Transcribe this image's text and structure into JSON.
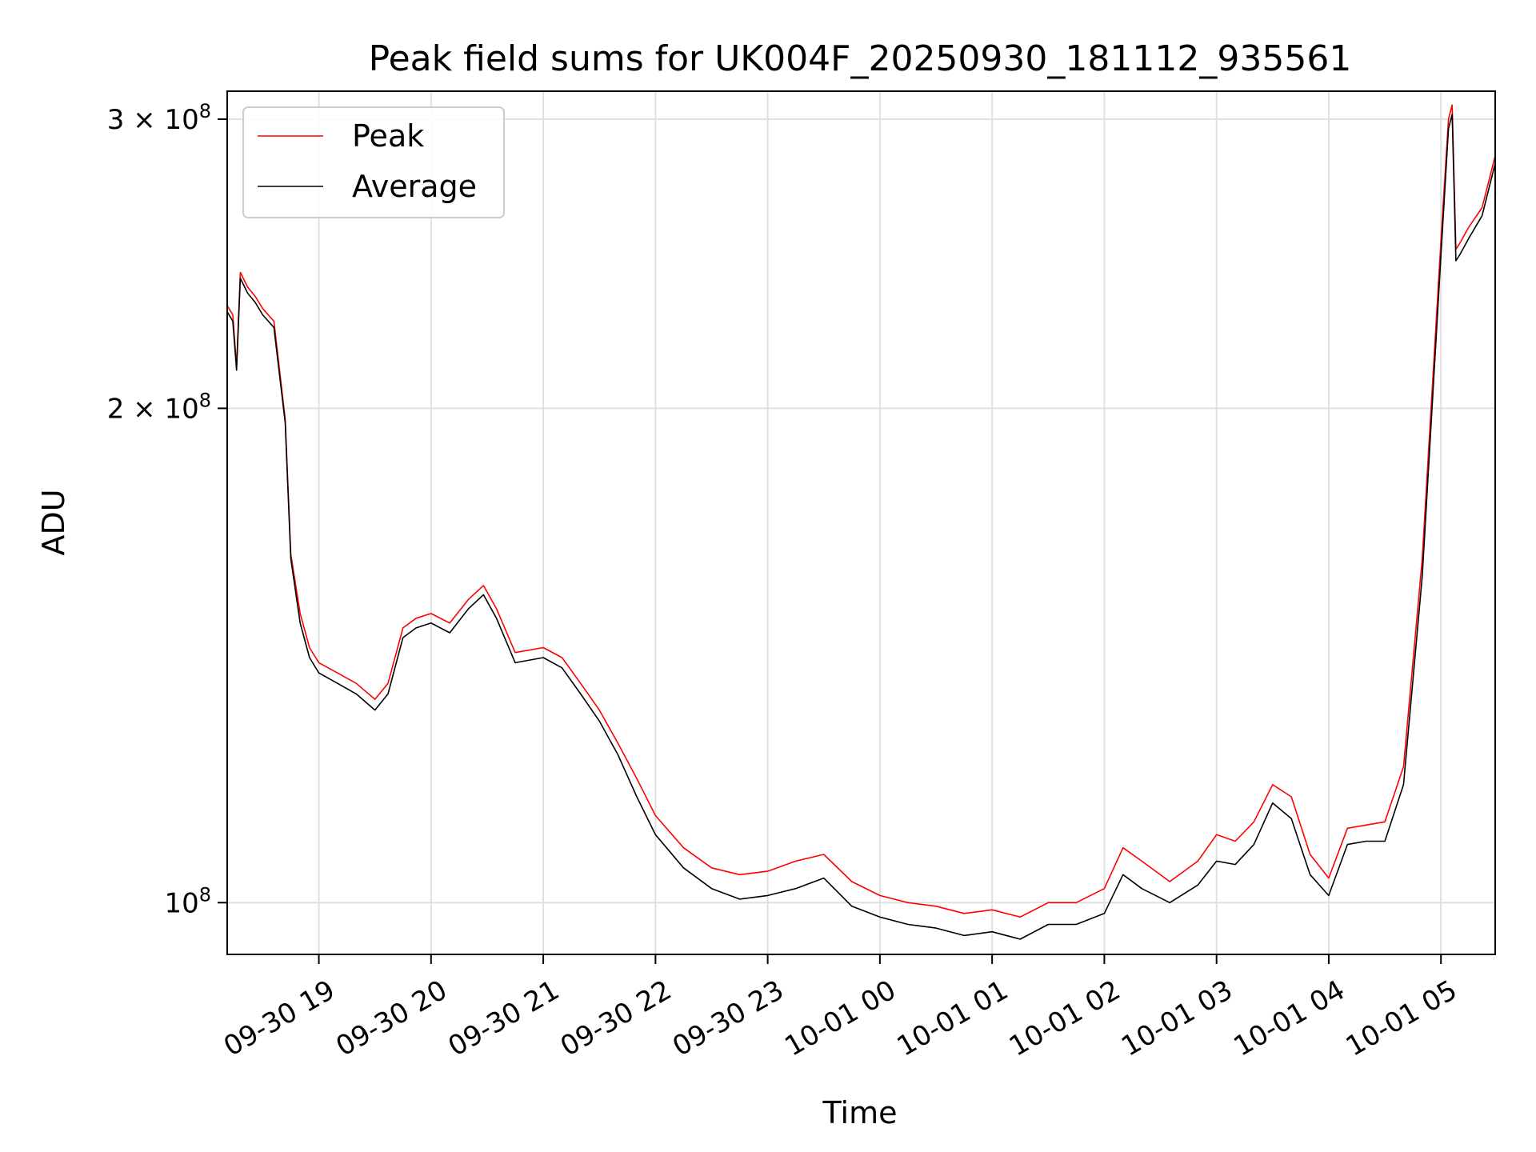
{
  "chart_data": {
    "type": "line",
    "title": "Peak field sums for UK004F_20250930_181112_935561",
    "xlabel": "Time",
    "ylabel": "ADU",
    "yscale": "log",
    "grid": true,
    "legend_position": "top-left",
    "x_range": [
      "2025-09-30 18:11",
      "2025-10-01 05:29"
    ],
    "ylim": [
      93000000,
      312000000
    ],
    "x_ticks": [
      "09-30 19",
      "09-30 20",
      "09-30 21",
      "09-30 22",
      "09-30 23",
      "10-01 00",
      "10-01 01",
      "10-01 02",
      "10-01 03",
      "10-01 04",
      "10-01 05"
    ],
    "y_ticks": [
      {
        "value": 100000000,
        "mantissa": "",
        "exponent": "8",
        "base": "10"
      },
      {
        "value": 200000000,
        "mantissa": "2",
        "exponent": "8",
        "base": "10"
      },
      {
        "value": 300000000,
        "mantissa": "3",
        "exponent": "8",
        "base": "10"
      }
    ],
    "x": [
      "2025-09-30 18:11",
      "2025-09-30 18:14",
      "2025-09-30 18:16",
      "2025-09-30 18:18",
      "2025-09-30 18:22",
      "2025-09-30 18:26",
      "2025-09-30 18:30",
      "2025-09-30 18:36",
      "2025-09-30 18:42",
      "2025-09-30 18:45",
      "2025-09-30 18:50",
      "2025-09-30 18:55",
      "2025-09-30 19:00",
      "2025-09-30 19:10",
      "2025-09-30 19:20",
      "2025-09-30 19:30",
      "2025-09-30 19:37",
      "2025-09-30 19:45",
      "2025-09-30 19:52",
      "2025-09-30 20:00",
      "2025-09-30 20:10",
      "2025-09-30 20:20",
      "2025-09-30 20:28",
      "2025-09-30 20:35",
      "2025-09-30 20:45",
      "2025-09-30 21:00",
      "2025-09-30 21:10",
      "2025-09-30 21:20",
      "2025-09-30 21:30",
      "2025-09-30 21:40",
      "2025-09-30 21:50",
      "2025-09-30 22:00",
      "2025-09-30 22:15",
      "2025-09-30 22:30",
      "2025-09-30 22:45",
      "2025-09-30 23:00",
      "2025-09-30 23:15",
      "2025-09-30 23:30",
      "2025-09-30 23:45",
      "2025-10-01 00:00",
      "2025-10-01 00:15",
      "2025-10-01 00:30",
      "2025-10-01 00:45",
      "2025-10-01 01:00",
      "2025-10-01 01:15",
      "2025-10-01 01:30",
      "2025-10-01 01:45",
      "2025-10-01 02:00",
      "2025-10-01 02:10",
      "2025-10-01 02:20",
      "2025-10-01 02:35",
      "2025-10-01 02:50",
      "2025-10-01 03:00",
      "2025-10-01 03:10",
      "2025-10-01 03:20",
      "2025-10-01 03:30",
      "2025-10-01 03:40",
      "2025-10-01 03:50",
      "2025-10-01 04:00",
      "2025-10-01 04:10",
      "2025-10-01 04:20",
      "2025-10-01 04:30",
      "2025-10-01 04:40",
      "2025-10-01 04:50",
      "2025-10-01 05:00",
      "2025-10-01 05:04",
      "2025-10-01 05:06",
      "2025-10-01 05:08",
      "2025-10-01 05:10",
      "2025-10-01 05:15",
      "2025-10-01 05:22",
      "2025-10-01 05:29"
    ],
    "series": [
      {
        "name": "Peak",
        "color": "#ff0000",
        "values": [
          231000000,
          228000000,
          212000000,
          242000000,
          237000000,
          234000000,
          230000000,
          226000000,
          197000000,
          163000000,
          150000000,
          143000000,
          140000000,
          138000000,
          136000000,
          133000000,
          136000000,
          147000000,
          149000000,
          150000000,
          148000000,
          153000000,
          156000000,
          151000000,
          142000000,
          143000000,
          141000000,
          136000000,
          131000000,
          125000000,
          119000000,
          113000000,
          108000000,
          105000000,
          104000000,
          104500000,
          106000000,
          107000000,
          103000000,
          101000000,
          100000000,
          99500000,
          98500000,
          99000000,
          98000000,
          100000000,
          100000000,
          102000000,
          108000000,
          106000000,
          103000000,
          106000000,
          110000000,
          109000000,
          112000000,
          118000000,
          116000000,
          107000000,
          103500000,
          111000000,
          111500000,
          112000000,
          121000000,
          162000000,
          253000000,
          300000000,
          306000000,
          250000000,
          252000000,
          258000000,
          265000000,
          285000000
        ]
      },
      {
        "name": "Average",
        "color": "#000000",
        "values": [
          229000000,
          226000000,
          211000000,
          240000000,
          235000000,
          232000000,
          228000000,
          224000000,
          196000000,
          162000000,
          148000000,
          141000000,
          138000000,
          136000000,
          134000000,
          131000000,
          134000000,
          145000000,
          147000000,
          148000000,
          146000000,
          151000000,
          154000000,
          149000000,
          140000000,
          141000000,
          139000000,
          134000000,
          129000000,
          123000000,
          116000000,
          110000000,
          105000000,
          102000000,
          100500000,
          101000000,
          102000000,
          103500000,
          99500000,
          98000000,
          97000000,
          96500000,
          95500000,
          96000000,
          95000000,
          97000000,
          97000000,
          98500000,
          104000000,
          102000000,
          100000000,
          102500000,
          106000000,
          105500000,
          108500000,
          115000000,
          112500000,
          104000000,
          101000000,
          108500000,
          109000000,
          109000000,
          118000000,
          158000000,
          248000000,
          296000000,
          302000000,
          246000000,
          248000000,
          254000000,
          262000000,
          282000000
        ]
      }
    ]
  }
}
